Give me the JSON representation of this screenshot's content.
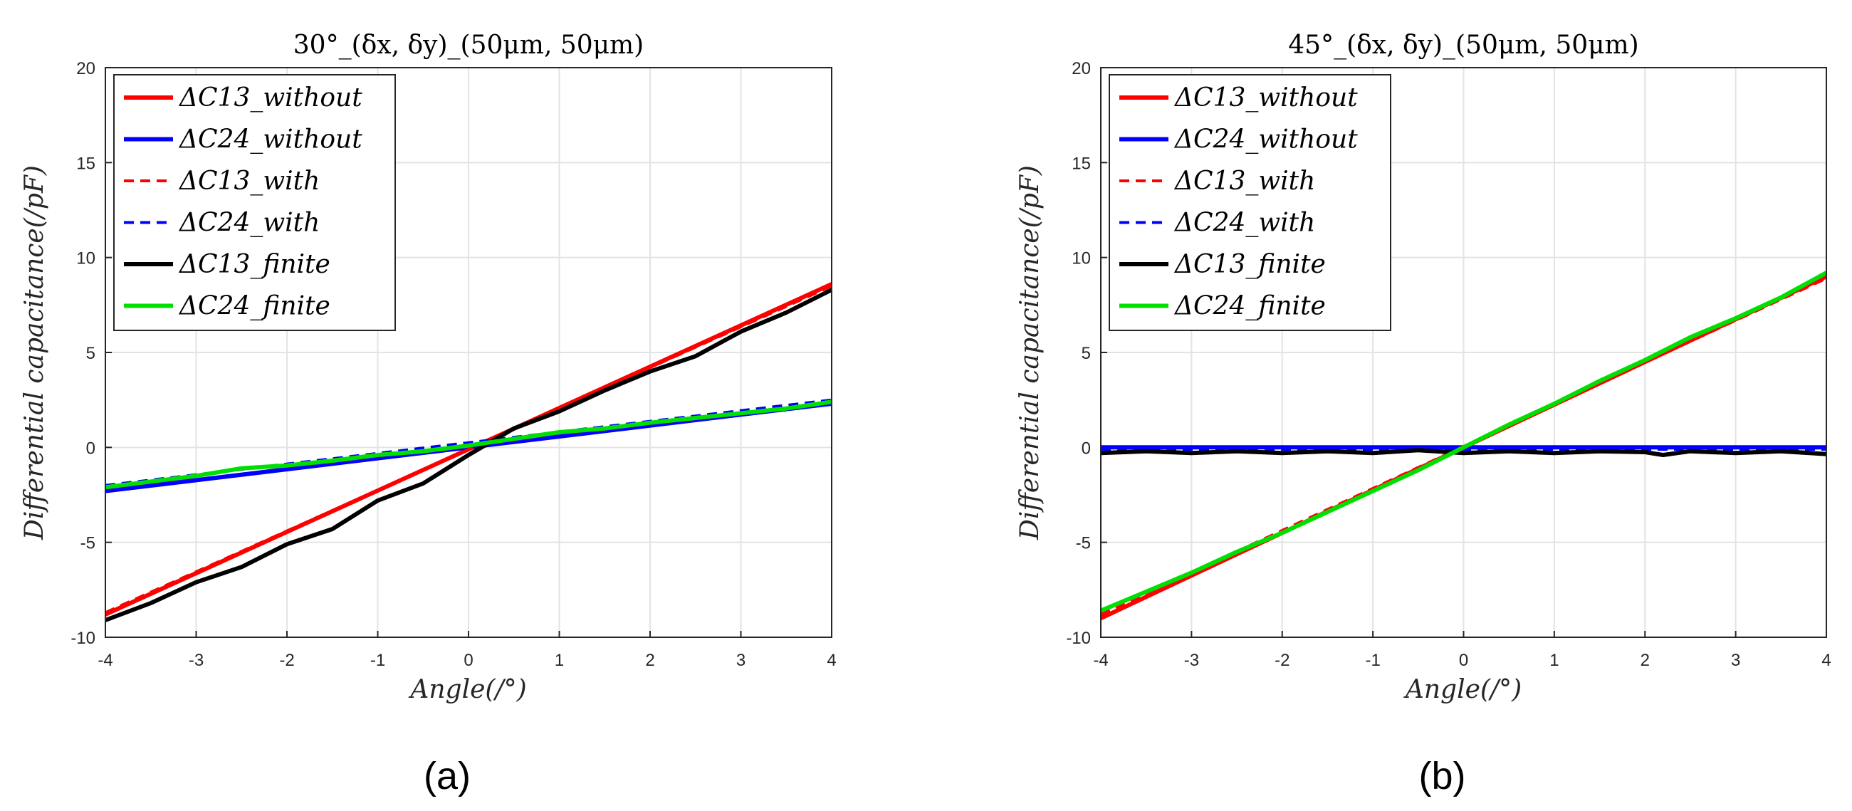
{
  "chart_data": [
    {
      "type": "line",
      "panel_label": "(a)",
      "title": "30°_(δx, δy)_(50μm, 50μm)",
      "xlabel": "Angle(/°)",
      "ylabel": "Differential   capacitance(/pF)",
      "xlim": [
        -4,
        4
      ],
      "ylim": [
        -10,
        20
      ],
      "xticks": [
        "-4",
        "-3",
        "-2",
        "-1",
        "0",
        "1",
        "2",
        "3",
        "4"
      ],
      "yticks": [
        "-10",
        "-5",
        "0",
        "5",
        "10",
        "15",
        "20"
      ],
      "grid": true,
      "legend_position": "top-left",
      "series": [
        {
          "name": "ΔC13_without",
          "color": "#ff0000",
          "style": "solid",
          "x": [
            -4,
            4
          ],
          "y": [
            -8.8,
            8.6
          ]
        },
        {
          "name": "ΔC24_without",
          "color": "#0000ff",
          "style": "solid",
          "x": [
            -4,
            4
          ],
          "y": [
            -2.3,
            2.3
          ]
        },
        {
          "name": "ΔC13_with",
          "color": "#ff0000",
          "style": "dashed",
          "x": [
            -4,
            4
          ],
          "y": [
            -8.7,
            8.5
          ]
        },
        {
          "name": "ΔC24_with",
          "color": "#0000ff",
          "style": "dashed",
          "x": [
            -4,
            4
          ],
          "y": [
            -2.0,
            2.5
          ]
        },
        {
          "name": "ΔC13_finite",
          "color": "#000000",
          "style": "solid",
          "x": [
            -4,
            -3.5,
            -3,
            -2.5,
            -2,
            -1.5,
            -1,
            -0.5,
            0,
            0.5,
            1,
            1.5,
            2,
            2.5,
            3,
            3.5,
            4
          ],
          "y": [
            -9.1,
            -8.2,
            -7.1,
            -6.3,
            -5.1,
            -4.3,
            -2.8,
            -1.9,
            -0.4,
            1.0,
            1.9,
            3.0,
            4.0,
            4.8,
            6.1,
            7.1,
            8.3
          ]
        },
        {
          "name": "ΔC24_finite",
          "color": "#00e000",
          "style": "solid",
          "x": [
            -4,
            -3.5,
            -3,
            -2.5,
            -2,
            -1.5,
            -1,
            -0.5,
            0,
            0.5,
            1,
            1.5,
            2,
            2.5,
            3,
            3.5,
            4
          ],
          "y": [
            -2.1,
            -1.8,
            -1.5,
            -1.1,
            -0.95,
            -0.7,
            -0.4,
            -0.2,
            0.1,
            0.45,
            0.8,
            1.0,
            1.3,
            1.55,
            1.8,
            2.05,
            2.4
          ]
        }
      ]
    },
    {
      "type": "line",
      "panel_label": "(b)",
      "title": "45°_(δx, δy)_(50μm, 50μm)",
      "xlabel": "Angle(/°)",
      "ylabel": "Differential   capacitance(/pF)",
      "xlim": [
        -4,
        4
      ],
      "ylim": [
        -10,
        20
      ],
      "xticks": [
        "-4",
        "-3",
        "-2",
        "-1",
        "0",
        "1",
        "2",
        "3",
        "4"
      ],
      "yticks": [
        "-10",
        "-5",
        "0",
        "5",
        "10",
        "15",
        "20"
      ],
      "grid": true,
      "legend_position": "top-left",
      "series": [
        {
          "name": "ΔC13_without",
          "color": "#ff0000",
          "style": "solid",
          "x": [
            -4,
            4
          ],
          "y": [
            -9.0,
            9.0
          ]
        },
        {
          "name": "ΔC24_without",
          "color": "#0000ff",
          "style": "solid",
          "x": [
            -4,
            4
          ],
          "y": [
            0,
            0
          ]
        },
        {
          "name": "ΔC13_with",
          "color": "#ff0000",
          "style": "dashed",
          "x": [
            -4,
            4
          ],
          "y": [
            -8.8,
            8.9
          ]
        },
        {
          "name": "ΔC24_with",
          "color": "#0000ff",
          "style": "dashed",
          "x": [
            -4,
            4
          ],
          "y": [
            -0.1,
            -0.1
          ]
        },
        {
          "name": "ΔC13_finite",
          "color": "#000000",
          "style": "solid",
          "x": [
            -4,
            -3.5,
            -3,
            -2.5,
            -2,
            -1.5,
            -1,
            -0.5,
            0,
            0.5,
            1,
            1.5,
            2,
            2.2,
            2.5,
            3,
            3.5,
            4
          ],
          "y": [
            -0.3,
            -0.2,
            -0.3,
            -0.2,
            -0.3,
            -0.2,
            -0.3,
            -0.15,
            -0.3,
            -0.2,
            -0.3,
            -0.2,
            -0.25,
            -0.4,
            -0.2,
            -0.3,
            -0.2,
            -0.35
          ]
        },
        {
          "name": "ΔC24_finite",
          "color": "#00e000",
          "style": "solid",
          "x": [
            -4,
            -3.5,
            -3,
            -2.5,
            -2,
            -1.5,
            -1,
            -0.5,
            0,
            0.5,
            1,
            1.5,
            2,
            2.5,
            3,
            3.5,
            4
          ],
          "y": [
            -8.6,
            -7.6,
            -6.6,
            -5.5,
            -4.5,
            -3.4,
            -2.3,
            -1.2,
            0.0,
            1.2,
            2.3,
            3.5,
            4.6,
            5.8,
            6.8,
            7.9,
            9.2
          ]
        }
      ]
    }
  ]
}
